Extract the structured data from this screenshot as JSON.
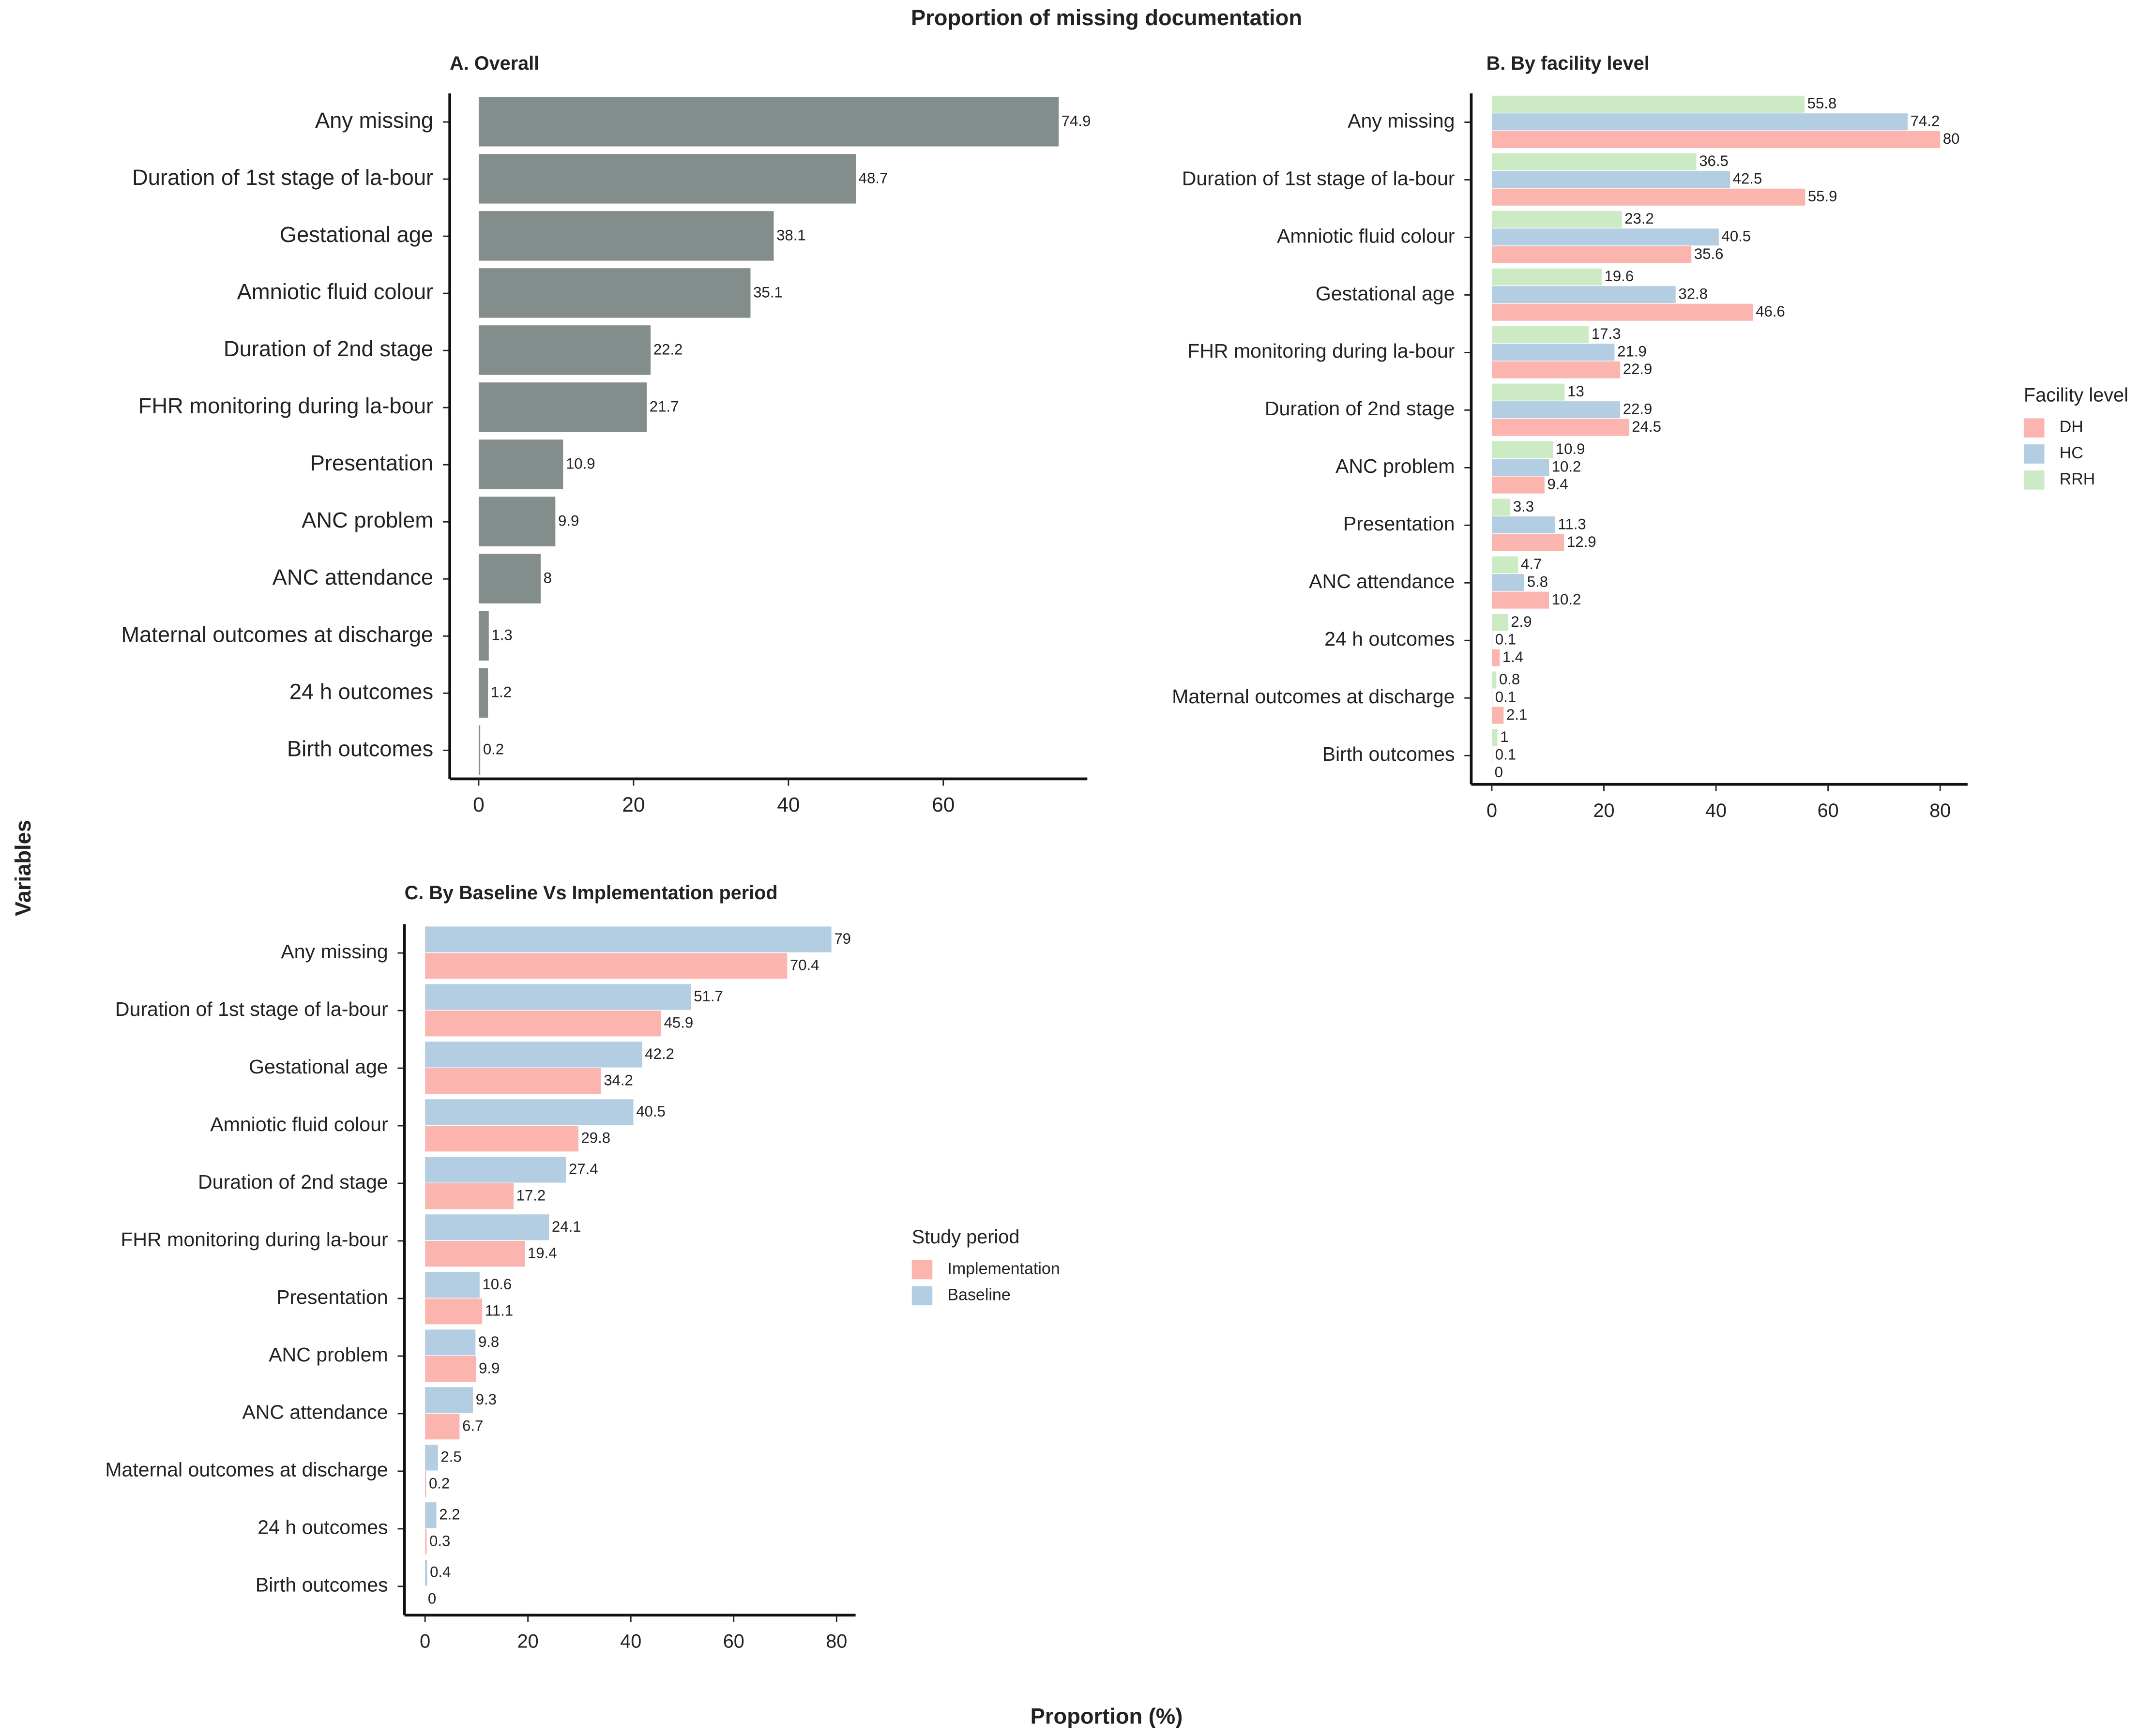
{
  "title": "Proportion of missing documentation",
  "x_label": "Proportion (%)",
  "y_label": "Variables",
  "chart_data": [
    {
      "type": "barh",
      "title": "A. Overall",
      "categories": [
        "Any missing",
        "Duration of 1st stage of la-bour",
        "Gestational age",
        "Amniotic fluid colour",
        "Duration of 2nd stage",
        "FHR monitoring during la-bour",
        "Presentation",
        "ANC problem",
        "ANC attendance",
        "Maternal outcomes at discharge",
        "24 h outcomes",
        "Birth outcomes"
      ],
      "values": [
        74.9,
        48.7,
        38.1,
        35.1,
        22.2,
        21.7,
        10.9,
        9.9,
        8,
        1.3,
        1.2,
        0.2
      ],
      "color": "#828d8c",
      "xlim": [
        -3.74,
        78.6
      ],
      "xticks": [
        0,
        20,
        40,
        60
      ]
    },
    {
      "type": "barh",
      "title": "B. By facility level",
      "categories": [
        "Any missing",
        "Duration of 1st stage of la-bour",
        "Amniotic fluid colour",
        "Gestational age",
        "FHR monitoring during la-bour",
        "Duration of 2nd stage",
        "ANC problem",
        "Presentation",
        "ANC attendance",
        "24 h outcomes",
        "Maternal outcomes at discharge",
        "Birth outcomes"
      ],
      "legend_title": "Facility level",
      "series": [
        {
          "name": "DH",
          "color": "#fbb4ae",
          "values": [
            80,
            55.9,
            35.6,
            46.6,
            22.9,
            24.5,
            9.4,
            12.9,
            10.2,
            1.4,
            2.1,
            0
          ]
        },
        {
          "name": "HC",
          "color": "#b3cde3",
          "values": [
            74.2,
            42.5,
            40.5,
            32.8,
            21.9,
            22.9,
            10.2,
            11.3,
            5.8,
            0.1,
            0.1,
            0.1
          ]
        },
        {
          "name": "RRH",
          "color": "#ccebc5",
          "values": [
            55.8,
            36.5,
            23.2,
            19.6,
            17.3,
            13,
            10.9,
            3.3,
            4.7,
            2.9,
            0.8,
            1
          ]
        }
      ],
      "xlim": [
        -3.67,
        84.9
      ],
      "xticks": [
        0,
        20,
        40,
        60,
        80
      ]
    },
    {
      "type": "barh",
      "title": "C. By Baseline Vs Implementation period",
      "categories": [
        "Any missing",
        "Duration of 1st stage of la-bour",
        "Gestational age",
        "Amniotic fluid colour",
        "Duration of 2nd stage",
        "FHR monitoring during la-bour",
        "Presentation",
        "ANC problem",
        "ANC attendance",
        "Maternal outcomes at discharge",
        "24 h outcomes",
        "Birth outcomes"
      ],
      "legend_title": "Study period",
      "series": [
        {
          "name": "Implementation",
          "color": "#fbb4ae",
          "values": [
            70.4,
            45.9,
            34.2,
            29.8,
            17.2,
            19.4,
            11.1,
            9.9,
            6.7,
            0.2,
            0.3,
            0
          ]
        },
        {
          "name": "Baseline",
          "color": "#b3cde3",
          "values": [
            79,
            51.7,
            42.2,
            40.5,
            27.4,
            24.1,
            10.6,
            9.8,
            9.3,
            2.5,
            2.2,
            0.4
          ]
        }
      ],
      "xlim": [
        -4,
        83.7
      ],
      "xticks": [
        0,
        20,
        40,
        60,
        80
      ]
    }
  ]
}
